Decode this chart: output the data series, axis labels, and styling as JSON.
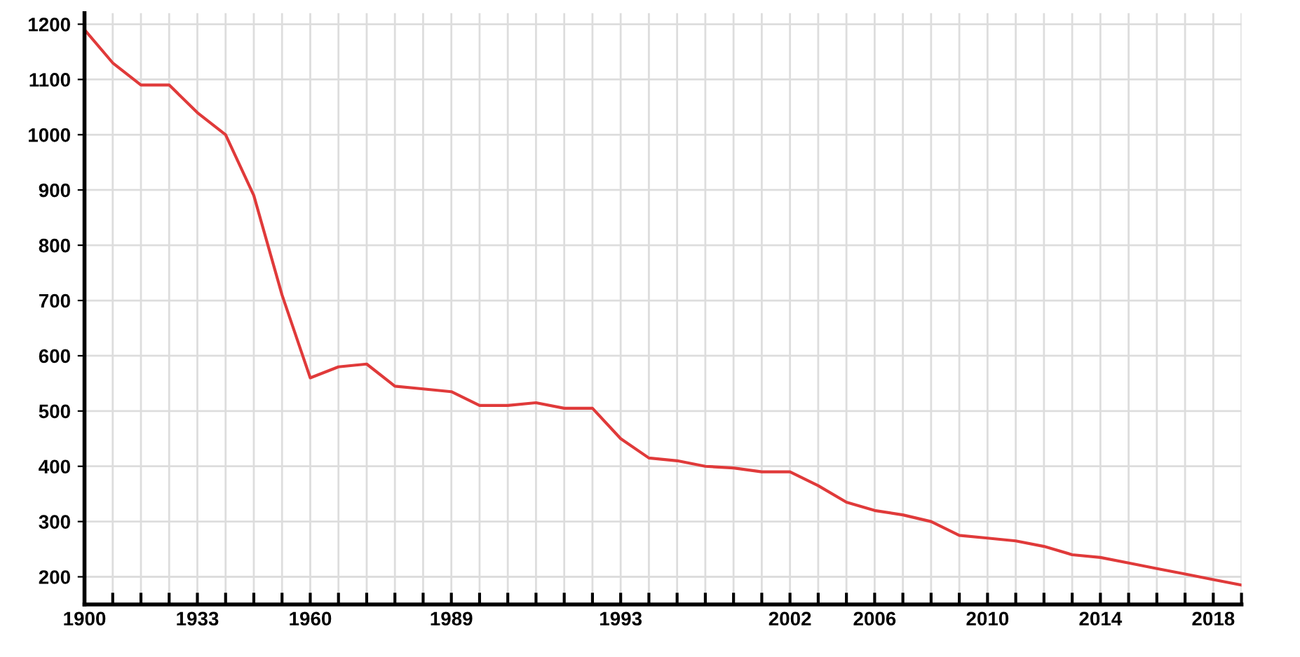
{
  "chart_data": {
    "type": "line",
    "categories": [
      "1900",
      null,
      null,
      null,
      "1933",
      null,
      null,
      null,
      "1960",
      null,
      null,
      null,
      null,
      "1989",
      null,
      null,
      null,
      null,
      null,
      "1993",
      null,
      null,
      null,
      null,
      null,
      "2002",
      null,
      null,
      "2006",
      null,
      null,
      null,
      "2010",
      null,
      null,
      null,
      "2014",
      null,
      null,
      null,
      "2018",
      null
    ],
    "series": [
      {
        "color": "#e03a3a",
        "values": [
          1190,
          1130,
          1090,
          1090,
          1040,
          1000,
          890,
          710,
          560,
          580,
          585,
          545,
          540,
          535,
          510,
          510,
          515,
          505,
          505,
          450,
          415,
          410,
          400,
          397,
          390,
          390,
          365,
          335,
          320,
          312,
          300,
          275,
          270,
          265,
          255,
          240,
          235,
          225,
          215,
          205,
          195,
          185
        ]
      }
    ],
    "ylim": [
      150,
      1220
    ],
    "yticks": [
      200,
      300,
      400,
      500,
      600,
      700,
      800,
      900,
      1000,
      1100,
      1200
    ],
    "grid": true,
    "line_style": "solid",
    "marker": "none"
  }
}
